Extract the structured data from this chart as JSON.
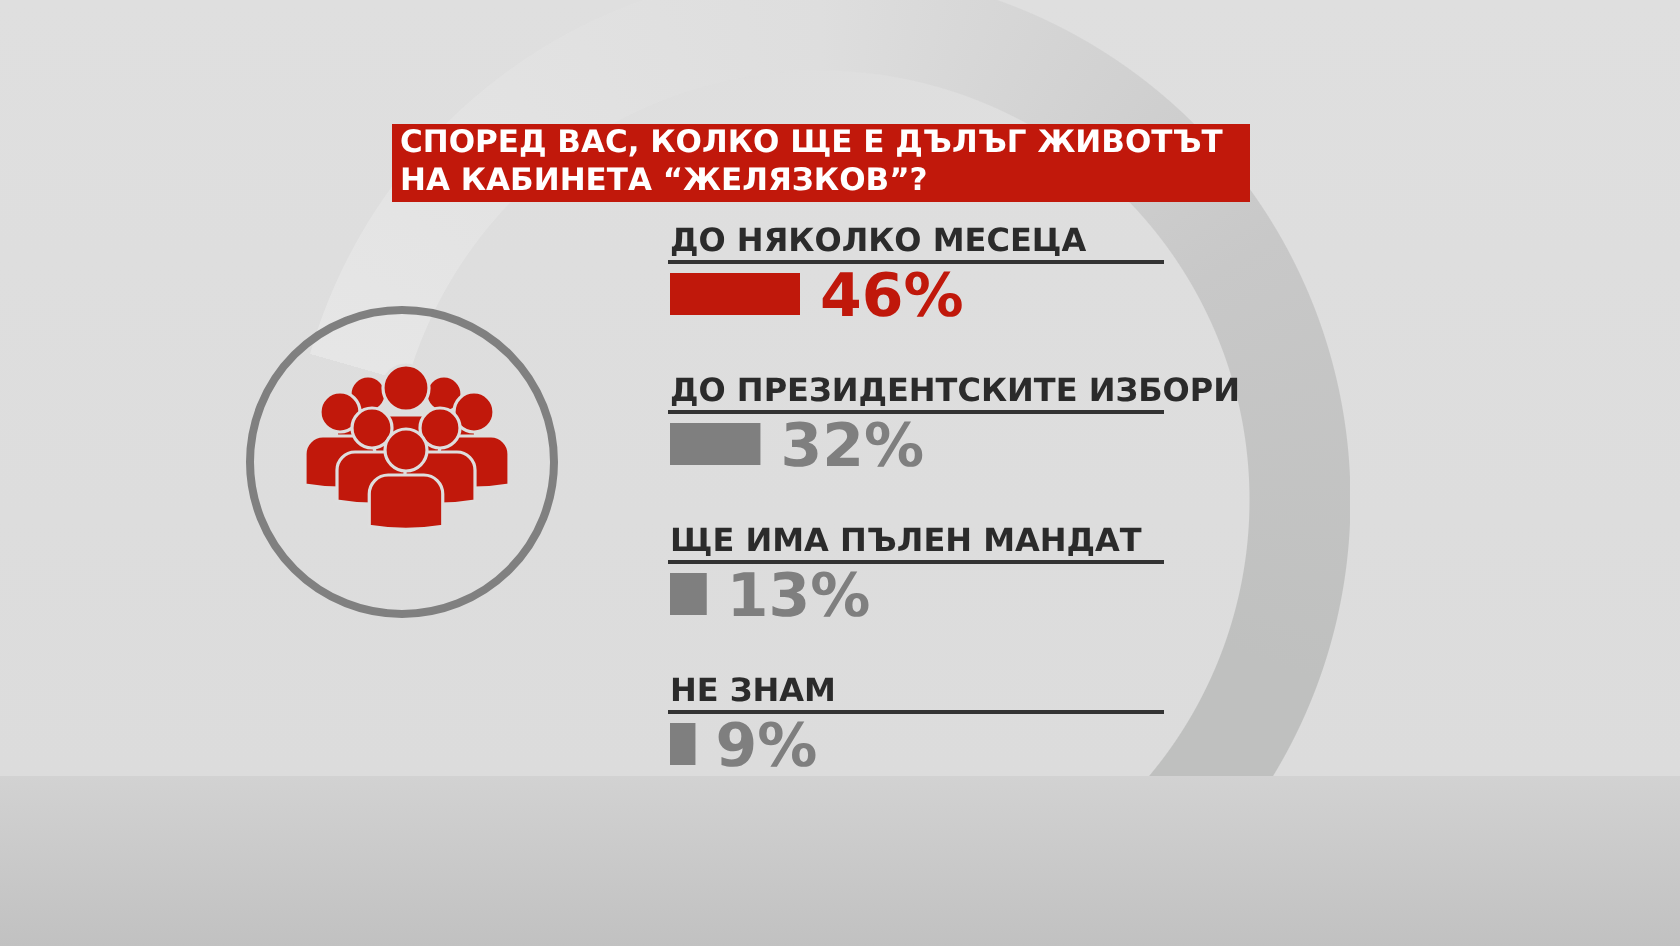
{
  "chart_data": {
    "type": "bar",
    "title": "СПОРЕД ВАС, КОЛКО ЩЕ Е ДЪЛЪГ ЖИВОТЪТ НА КАБИНЕТА “ЖЕЛЯЗКОВ”?",
    "orientation": "horizontal",
    "categories": [
      "ДО НЯКОЛКО МЕСЕЦА",
      "ДО ПРЕЗИДЕНТСКИТЕ ИЗБОРИ",
      "ЩЕ ИМА ПЪЛЕН МАНДАТ",
      "НЕ ЗНАМ"
    ],
    "values": [
      46,
      32,
      13,
      9
    ],
    "colors": [
      "#c0180b",
      "#7f7f7f",
      "#7f7f7f",
      "#7f7f7f"
    ],
    "value_labels": [
      "46%",
      "32%",
      "13%",
      "9%"
    ]
  }
}
